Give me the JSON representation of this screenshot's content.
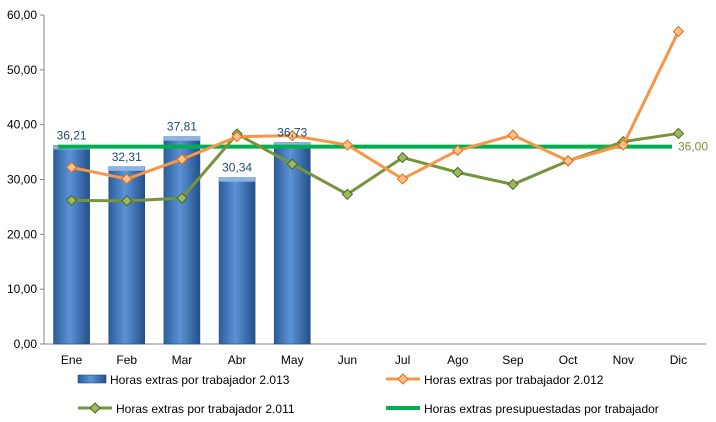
{
  "chart_data": {
    "type": "bar",
    "categories": [
      "Ene",
      "Feb",
      "Mar",
      "Abr",
      "May",
      "Jun",
      "Jul",
      "Ago",
      "Sep",
      "Oct",
      "Nov",
      "Dic"
    ],
    "ylim": [
      0,
      60
    ],
    "yticks": [
      "0,00",
      "10,00",
      "20,00",
      "30,00",
      "40,00",
      "50,00",
      "60,00"
    ],
    "grid": false,
    "legend_position": "bottom",
    "series": [
      {
        "name": "Horas extras por trabajador 2.013",
        "type": "bar",
        "color": "#4F81BD",
        "values": [
          36.21,
          32.31,
          37.81,
          30.34,
          36.73,
          null,
          null,
          null,
          null,
          null,
          null,
          null
        ],
        "labels": [
          "36,21",
          "32,31",
          "37,81",
          "30,34",
          "36,73"
        ]
      },
      {
        "name": "Horas extras por trabajador 2.012",
        "type": "line",
        "color": "#F79646",
        "values": [
          32.2,
          30.1,
          33.7,
          37.8,
          38.0,
          36.3,
          30.1,
          35.3,
          38.1,
          33.4,
          36.3,
          57.0
        ]
      },
      {
        "name": "Horas extras por trabajador 2.011",
        "type": "line",
        "color": "#77933C",
        "values": [
          26.2,
          26.1,
          26.6,
          38.3,
          32.8,
          27.3,
          34.0,
          31.3,
          29.1,
          33.4,
          36.9,
          38.4
        ]
      },
      {
        "name": "Horas extras presupuestadas por trabajador",
        "type": "line",
        "color": "#00B050",
        "values": [
          36,
          36,
          36,
          36,
          36,
          36,
          36,
          36,
          36,
          36,
          36,
          36
        ],
        "end_label": "36,00"
      }
    ]
  }
}
